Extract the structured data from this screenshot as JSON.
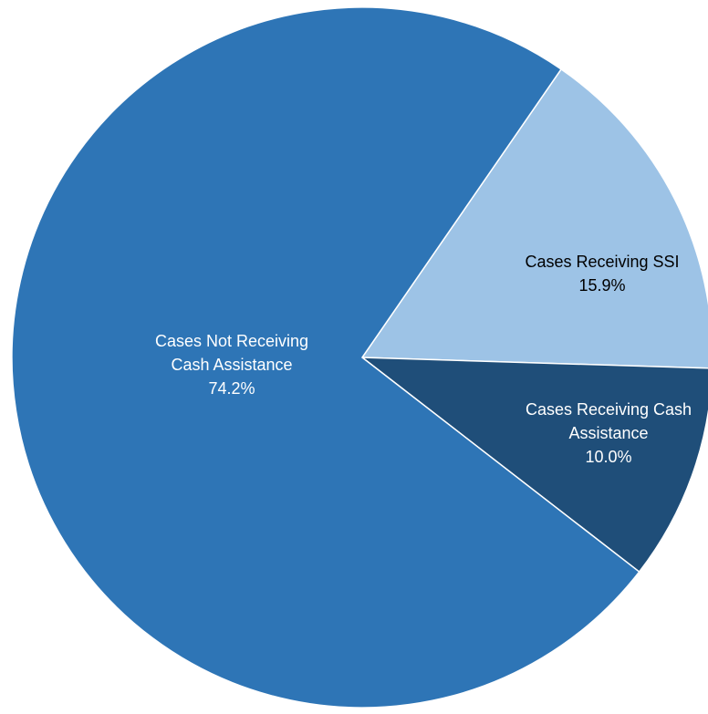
{
  "chart_data": {
    "type": "pie",
    "categories": [
      "Cases Receiving SSI",
      "Cases Receiving Cash Assistance",
      "Cases Not Receiving Cash Assistance"
    ],
    "values": [
      15.9,
      10.0,
      74.2
    ],
    "value_labels": [
      "15.9%",
      "10.0%",
      "74.2%"
    ],
    "colors": [
      "#9dc3e6",
      "#1f4e79",
      "#2e75b6"
    ],
    "label_colors": [
      "#000000",
      "#ffffff",
      "#ffffff"
    ]
  }
}
